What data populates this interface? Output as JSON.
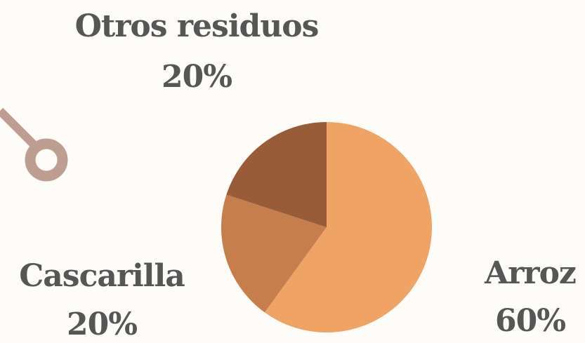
{
  "chart_data": {
    "type": "pie",
    "title": "",
    "slices": [
      {
        "label": "Arroz",
        "value": 60,
        "display": "60%",
        "color": "#efa365"
      },
      {
        "label": "Cascarilla",
        "value": 20,
        "display": "20%",
        "color": "#c57e4c"
      },
      {
        "label": "Otros residuos",
        "value": 20,
        "display": "20%",
        "color": "#995c38"
      }
    ]
  },
  "colors": {
    "background": "#fdfcf9",
    "text": "#565656",
    "decoration": "#bf9e92"
  },
  "decoration": {
    "icon": "pin-marker-icon"
  }
}
